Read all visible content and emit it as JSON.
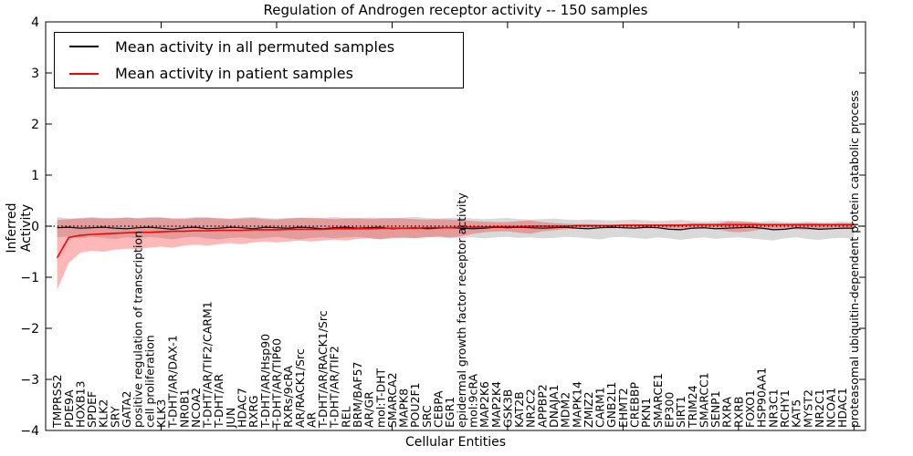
{
  "figure": {
    "title": "Regulation of Androgen receptor activity -- 150 samples",
    "xlabel": "Cellular Entities",
    "ylabel": "Inferred Activity"
  },
  "legend": {
    "items": [
      {
        "label": "Mean activity in all permuted samples",
        "color": "#000000"
      },
      {
        "label": "Mean activity in patient samples",
        "color": "#ff0000"
      }
    ]
  },
  "chart_data": {
    "type": "line",
    "title": "Regulation of Androgen receptor activity -- 150 samples",
    "xlabel": "Cellular Entities",
    "ylabel": "Inferred Activity",
    "ylim": [
      -4,
      4
    ],
    "xlim": [
      0,
      71
    ],
    "yticks": [
      -4,
      -3,
      -2,
      -1,
      0,
      1,
      2,
      3,
      4
    ],
    "ytick_labels": [
      "−4",
      "−3",
      "−2",
      "−1",
      "0",
      "1",
      "2",
      "3",
      "4"
    ],
    "xticks": [
      10,
      20,
      30,
      40,
      50,
      60,
      70
    ],
    "zero_line": true,
    "grid": false,
    "legend_position": "upper left",
    "categories": [
      "TMPRSS2",
      "PDE9A",
      "HOXB13",
      "SPDEF",
      "KLK2",
      "SRY",
      "GATA2",
      "positive regulation of transcription",
      "cell proliferation",
      "KLK3",
      "T-DHT/AR/DAX-1",
      "NR0B1",
      "NCOA2",
      "T-DHT/AR/TIF2/CARM1",
      "T-DHT/AR",
      "JUN",
      "HDAC7",
      "RXRG",
      "T-DHT/AR/Hsp90",
      "T-DHT/AR/TIP60",
      "RXRs/9cRA",
      "AR/RACK1/Src",
      "AR",
      "T-DHT/AR/RACK1/Src",
      "T-DHT/AR/TIF2",
      "REL",
      "BRM/BAF57",
      "AR/GR",
      "mol:T-DHT",
      "SMARCA2",
      "MAPK8",
      "POU2F1",
      "SRC",
      "CEBPA",
      "EGR1",
      "epidermal growth factor receptor activity",
      "mol:9cRA",
      "MAP2K6",
      "MAP2K4",
      "GSK3B",
      "KAT2B",
      "NR2C2",
      "APPBP2",
      "DNAJA1",
      "MDM2",
      "MAPK14",
      "ZMIZ2",
      "CARM1",
      "GNB2L1",
      "EHMT2",
      "CREBBP",
      "PKN1",
      "SMARCE1",
      "EP300",
      "SIRT1",
      "TRIM24",
      "SMARCC1",
      "SENP1",
      "RXRA",
      "RXRB",
      "FOXO1",
      "HSP90AA1",
      "NR3C1",
      "RCHY1",
      "KAT5",
      "MYST2",
      "NR2C1",
      "NCOA1",
      "HDAC1",
      "proteasomal ubiquitin-dependent protein catabolic process"
    ],
    "series": [
      {
        "name": "Mean activity in all permuted samples",
        "color": "#000000",
        "line_width": 1.2,
        "band_color": "rgba(128,128,128,0.30)",
        "values": [
          -0.03,
          -0.02,
          -0.04,
          -0.03,
          -0.02,
          -0.04,
          -0.05,
          -0.03,
          -0.02,
          -0.04,
          -0.06,
          -0.03,
          -0.02,
          -0.05,
          -0.04,
          -0.02,
          -0.03,
          -0.05,
          -0.02,
          -0.03,
          -0.04,
          -0.02,
          -0.03,
          -0.05,
          -0.03,
          -0.02,
          -0.04,
          -0.03,
          -0.02,
          -0.05,
          -0.04,
          -0.03,
          -0.05,
          -0.04,
          -0.03,
          -0.04,
          -0.05,
          -0.04,
          -0.02,
          -0.03,
          -0.02,
          -0.03,
          -0.04,
          -0.03,
          -0.02,
          -0.04,
          -0.05,
          -0.03,
          -0.02,
          -0.03,
          -0.04,
          -0.02,
          -0.03,
          -0.06,
          -0.07,
          -0.04,
          -0.03,
          -0.05,
          -0.04,
          -0.03,
          -0.02,
          -0.04,
          -0.07,
          -0.06,
          -0.03,
          -0.04,
          -0.06,
          -0.05,
          -0.04,
          -0.04
        ],
        "band_upper": [
          0.18,
          0.15,
          0.16,
          0.18,
          0.16,
          0.15,
          0.17,
          0.16,
          0.18,
          0.17,
          0.15,
          0.16,
          0.18,
          0.17,
          0.16,
          0.15,
          0.17,
          0.18,
          0.16,
          0.15,
          0.16,
          0.17,
          0.15,
          0.16,
          0.18,
          0.16,
          0.15,
          0.17,
          0.16,
          0.15,
          0.17,
          0.18,
          0.16,
          0.15,
          0.16,
          0.17,
          0.15,
          0.14,
          0.15,
          0.16,
          0.14,
          0.13,
          0.14,
          0.15,
          0.13,
          0.12,
          0.13,
          0.12,
          0.11,
          0.12,
          0.13,
          0.11,
          0.1,
          0.11,
          0.12,
          0.1,
          0.09,
          0.1,
          0.11,
          0.09,
          0.08,
          0.09,
          0.1,
          0.08,
          0.08,
          0.09,
          0.08,
          0.08,
          0.09,
          0.08
        ],
        "band_lower": [
          -0.22,
          -0.2,
          -0.24,
          -0.21,
          -0.23,
          -0.25,
          -0.22,
          -0.24,
          -0.21,
          -0.23,
          -0.26,
          -0.22,
          -0.21,
          -0.24,
          -0.26,
          -0.23,
          -0.22,
          -0.25,
          -0.23,
          -0.21,
          -0.24,
          -0.26,
          -0.23,
          -0.22,
          -0.24,
          -0.22,
          -0.21,
          -0.23,
          -0.25,
          -0.22,
          -0.24,
          -0.23,
          -0.21,
          -0.22,
          -0.24,
          -0.23,
          -0.22,
          -0.24,
          -0.22,
          -0.21,
          -0.23,
          -0.22,
          -0.24,
          -0.23,
          -0.21,
          -0.22,
          -0.24,
          -0.26,
          -0.22,
          -0.21,
          -0.23,
          -0.25,
          -0.22,
          -0.24,
          -0.27,
          -0.24,
          -0.22,
          -0.25,
          -0.23,
          -0.22,
          -0.24,
          -0.26,
          -0.28,
          -0.24,
          -0.22,
          -0.25,
          -0.27,
          -0.24,
          -0.23,
          -0.25
        ]
      },
      {
        "name": "Mean activity in patient samples",
        "color": "#ff0000",
        "line_width": 1.6,
        "band_color": "rgba(255,0,0,0.28)",
        "values": [
          -0.62,
          -0.22,
          -0.18,
          -0.16,
          -0.15,
          -0.14,
          -0.13,
          -0.12,
          -0.12,
          -0.11,
          -0.1,
          -0.1,
          -0.09,
          -0.09,
          -0.08,
          -0.08,
          -0.08,
          -0.07,
          -0.07,
          -0.07,
          -0.06,
          -0.06,
          -0.06,
          -0.06,
          -0.05,
          -0.05,
          -0.05,
          -0.05,
          -0.04,
          -0.04,
          -0.04,
          -0.04,
          -0.03,
          -0.03,
          -0.03,
          -0.02,
          -0.02,
          -0.02,
          -0.01,
          -0.01,
          -0.01,
          0.0,
          0.0,
          0.0,
          0.0,
          0.01,
          0.01,
          0.01,
          0.01,
          0.02,
          0.02,
          0.02,
          0.02,
          0.02,
          0.02,
          0.03,
          0.03,
          0.03,
          0.03,
          0.03,
          0.03,
          0.03,
          0.03,
          0.03,
          0.03,
          0.03,
          0.03,
          0.03,
          0.03,
          0.03
        ],
        "band_upper": [
          0.12,
          0.14,
          0.15,
          0.16,
          0.15,
          0.16,
          0.17,
          0.15,
          0.16,
          0.17,
          0.15,
          0.14,
          0.16,
          0.17,
          0.15,
          0.14,
          0.15,
          0.16,
          0.14,
          0.13,
          0.15,
          0.16,
          0.17,
          0.15,
          0.14,
          0.15,
          0.16,
          0.14,
          0.15,
          0.16,
          0.15,
          0.14,
          0.13,
          0.14,
          0.13,
          0.12,
          0.1,
          0.09,
          0.08,
          0.08,
          0.1,
          0.11,
          0.08,
          0.06,
          0.05,
          0.04,
          0.04,
          0.03,
          0.03,
          0.03,
          0.04,
          0.03,
          0.03,
          0.04,
          0.04,
          0.04,
          0.04,
          0.04,
          0.09,
          0.1,
          0.09,
          0.05,
          0.04,
          0.04,
          0.05,
          0.06,
          0.05,
          0.04,
          0.06,
          0.05
        ],
        "band_lower": [
          -1.25,
          -0.72,
          -0.52,
          -0.48,
          -0.5,
          -0.46,
          -0.44,
          -0.45,
          -0.42,
          -0.4,
          -0.42,
          -0.38,
          -0.36,
          -0.38,
          -0.35,
          -0.33,
          -0.35,
          -0.32,
          -0.3,
          -0.32,
          -0.3,
          -0.28,
          -0.3,
          -0.28,
          -0.26,
          -0.28,
          -0.25,
          -0.24,
          -0.26,
          -0.24,
          -0.22,
          -0.24,
          -0.22,
          -0.2,
          -0.22,
          -0.2,
          -0.15,
          -0.12,
          -0.1,
          -0.1,
          -0.13,
          -0.15,
          -0.1,
          -0.08,
          -0.06,
          -0.05,
          -0.05,
          -0.04,
          -0.04,
          -0.04,
          -0.05,
          -0.04,
          -0.04,
          -0.05,
          -0.05,
          -0.05,
          -0.05,
          -0.05,
          -0.1,
          -0.12,
          -0.1,
          -0.06,
          -0.05,
          -0.05,
          -0.06,
          -0.07,
          -0.06,
          -0.05,
          -0.06,
          -0.05
        ]
      }
    ]
  }
}
